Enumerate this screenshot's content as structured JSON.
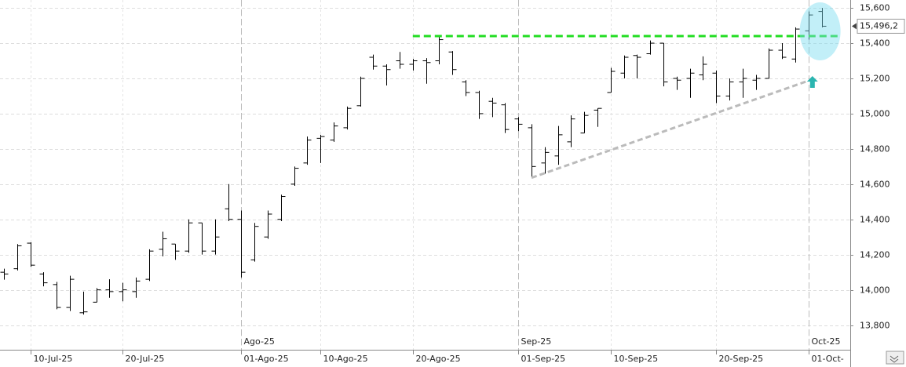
{
  "chart_data": {
    "type": "ohlc",
    "categories": [
      null,
      null,
      "10-Jul-25",
      null,
      null,
      null,
      null,
      null,
      null,
      "20-Jul-25",
      null,
      null,
      null,
      null,
      null,
      null,
      null,
      null,
      "01-Ago-25",
      null,
      null,
      null,
      null,
      null,
      "10-Ago-25",
      null,
      null,
      null,
      null,
      null,
      null,
      "20-Ago-25",
      null,
      null,
      null,
      null,
      null,
      null,
      null,
      "01-Sep-25",
      null,
      null,
      null,
      null,
      null,
      null,
      "10-Sep-25",
      null,
      null,
      null,
      null,
      null,
      null,
      null,
      "20-Sep-25",
      null,
      null,
      null,
      null,
      null,
      null,
      "01-Oct-",
      null
    ],
    "month_labels": [
      null,
      null,
      null,
      null,
      null,
      null,
      null,
      null,
      null,
      null,
      null,
      null,
      null,
      null,
      null,
      null,
      null,
      null,
      "Ago-25",
      null,
      null,
      null,
      null,
      null,
      null,
      null,
      null,
      null,
      null,
      null,
      null,
      null,
      null,
      null,
      null,
      null,
      null,
      null,
      null,
      "Sep-25",
      null,
      null,
      null,
      null,
      null,
      null,
      null,
      null,
      null,
      null,
      null,
      null,
      null,
      null,
      null,
      null,
      null,
      null,
      null,
      null,
      null,
      "Oct-25",
      null
    ],
    "open": [
      14100,
      14120,
      14265,
      14090,
      14030,
      13900,
      13870,
      13930,
      14000,
      13990,
      13990,
      14060,
      14230,
      14260,
      14220,
      14380,
      14220,
      14460,
      14400,
      14170,
      14300,
      14400,
      14600,
      14720,
      14860,
      14850,
      14920,
      15045,
      15320,
      15270,
      15300,
      15280,
      15300,
      15300,
      15350,
      15180,
      15120,
      15070,
      15050,
      14970,
      14920,
      14720,
      14760,
      14840,
      14890,
      15020,
      15120,
      15230,
      15330,
      15340,
      15400,
      15200,
      15200,
      15220,
      15230,
      15100,
      15180,
      15190,
      15200,
      15360,
      15310,
      15470,
      15580
    ],
    "high": [
      14120,
      14260,
      14270,
      14100,
      14045,
      14080,
      13990,
      14010,
      14060,
      14040,
      14070,
      14230,
      14330,
      14260,
      14400,
      14380,
      14400,
      14600,
      14450,
      14380,
      14450,
      14540,
      14700,
      14870,
      14880,
      14950,
      15040,
      15210,
      15335,
      15280,
      15350,
      15310,
      15315,
      15445,
      15355,
      15190,
      15130,
      15090,
      15060,
      14980,
      14940,
      14810,
      14930,
      14990,
      15010,
      15030,
      15260,
      15330,
      15335,
      15415,
      15400,
      15210,
      15255,
      15325,
      15245,
      15200,
      15255,
      15220,
      15370,
      15400,
      15490,
      15580,
      15600
    ],
    "low": [
      14058,
      14110,
      14130,
      14020,
      13890,
      13880,
      13860,
      13930,
      13955,
      13935,
      13955,
      14050,
      14190,
      14170,
      14210,
      14200,
      14200,
      14390,
      14070,
      14160,
      14290,
      14390,
      14590,
      14710,
      14720,
      14840,
      14910,
      15040,
      15250,
      15160,
      15255,
      15245,
      15170,
      15280,
      15220,
      15100,
      14970,
      14980,
      14890,
      14900,
      14640,
      14660,
      14710,
      14810,
      14890,
      14925,
      15120,
      15200,
      15200,
      15335,
      15155,
      15135,
      15090,
      15190,
      15060,
      15075,
      15090,
      15135,
      15200,
      15310,
      15290,
      15420,
      15490
    ],
    "close": [
      14090,
      14250,
      14140,
      14040,
      13900,
      14060,
      13875,
      14000,
      13990,
      14000,
      14050,
      14220,
      14290,
      14220,
      14380,
      14220,
      14300,
      14400,
      14100,
      14360,
      14430,
      14530,
      14690,
      14850,
      14870,
      14930,
      15030,
      15200,
      15270,
      15250,
      15280,
      15300,
      15290,
      15420,
      15250,
      15120,
      15000,
      15060,
      14910,
      14940,
      14700,
      14780,
      14880,
      14970,
      14990,
      15030,
      15240,
      15320,
      15320,
      15400,
      15180,
      15190,
      15230,
      15280,
      15100,
      15180,
      15200,
      15200,
      15360,
      15320,
      15480,
      15560,
      15496.2
    ],
    "color": "#000000",
    "ylim": [
      13660,
      15645
    ],
    "yticks": [
      {
        "value": 13800,
        "label": "13,800"
      },
      {
        "value": 14000,
        "label": "14,000"
      },
      {
        "value": 14200,
        "label": "14,200"
      },
      {
        "value": 14400,
        "label": "14,400"
      },
      {
        "value": 14600,
        "label": "14,600"
      },
      {
        "value": 14800,
        "label": "14,800"
      },
      {
        "value": 15000,
        "label": "15,000"
      },
      {
        "value": 15200,
        "label": "15,200"
      },
      {
        "value": 15400,
        "label": "15,400"
      },
      {
        "value": 15600,
        "label": "15,600"
      }
    ],
    "grid": true,
    "last_price": {
      "value": 15496.2,
      "label": "15,496,2"
    },
    "resistance": {
      "value": 15440,
      "color": "#22dd22"
    },
    "trendline": {
      "values": [
        14636,
        15187
      ],
      "color": "#bbbbbb"
    }
  }
}
